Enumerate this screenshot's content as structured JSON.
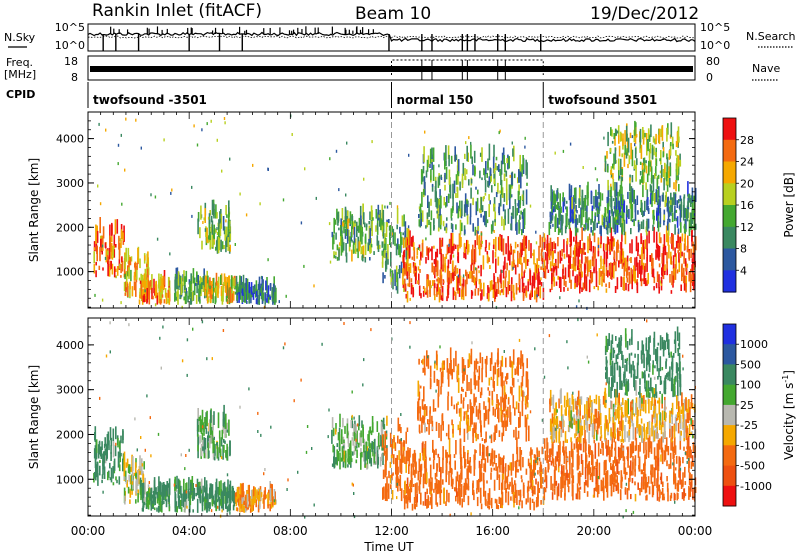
{
  "header": {
    "station": "Rankin Inlet (fitACF)",
    "beam": "Beam 10",
    "date": "19/Dec/2012"
  },
  "top_panels": {
    "nsky_label": "N.Sky",
    "nsky_ticks": [
      "10^5",
      "10^0"
    ],
    "nsearch_label": "N.Search",
    "nsearch_ticks": [
      "10^5",
      "10^0"
    ],
    "freq_label_line1": "Freq.",
    "freq_label_line2": "[MHz]",
    "freq_ticks": [
      "18",
      "8"
    ],
    "nave_label": "Nave",
    "nave_ticks": [
      "80",
      "0"
    ],
    "cpid_label": "CPID",
    "cpid_segments": [
      {
        "label": "twofsound -3501",
        "start_hour": 0,
        "end_hour": 12
      },
      {
        "label": "normal 150",
        "start_hour": 12,
        "end_hour": 18
      },
      {
        "label": "twofsound 3501",
        "start_hour": 18,
        "end_hour": 24
      }
    ]
  },
  "x_axis": {
    "label": "Time UT",
    "ticks": [
      "00:00",
      "04:00",
      "08:00",
      "12:00",
      "16:00",
      "20:00",
      "00:00"
    ],
    "range_hours": [
      0,
      24
    ]
  },
  "chart_data": [
    {
      "type": "heatmap",
      "name": "Power",
      "ylabel": "Slant Range [km]",
      "ylim": [
        180,
        4600
      ],
      "yticks": [
        1000,
        2000,
        3000,
        4000
      ],
      "xlim": [
        0,
        24
      ],
      "colorbar": {
        "label": "Power [dB]",
        "ticks": [
          "28",
          "24",
          "20",
          "16",
          "12",
          "8",
          "4"
        ],
        "colors": [
          "#ee1010",
          "#f46a10",
          "#f5a800",
          "#b8d020",
          "#44a830",
          "#3a8860",
          "#2c58a0",
          "#2030e0"
        ]
      },
      "regions": [
        {
          "t0": 0.2,
          "t1": 1.4,
          "r0": 850,
          "r1": 1900,
          "level": 26
        },
        {
          "t0": 1.4,
          "t1": 2.4,
          "r0": 400,
          "r1": 1300,
          "level": 22
        },
        {
          "t0": 2.0,
          "t1": 3.2,
          "r0": 250,
          "r1": 700,
          "level": 24
        },
        {
          "t0": 3.4,
          "t1": 4.6,
          "r0": 250,
          "r1": 800,
          "level": 12
        },
        {
          "t0": 4.6,
          "t1": 5.8,
          "r0": 250,
          "r1": 700,
          "level": 20
        },
        {
          "t0": 4.3,
          "t1": 5.6,
          "r0": 1400,
          "r1": 2300,
          "level": 14
        },
        {
          "t0": 5.8,
          "t1": 7.4,
          "r0": 250,
          "r1": 600,
          "level": 8
        },
        {
          "t0": 9.6,
          "t1": 11.8,
          "r0": 1200,
          "r1": 2200,
          "level": 14
        },
        {
          "t0": 11.6,
          "t1": 12.6,
          "r0": 500,
          "r1": 2100,
          "level": 12
        },
        {
          "t0": 12.4,
          "t1": 18.0,
          "r0": 300,
          "r1": 1600,
          "level": 27
        },
        {
          "t0": 13.0,
          "t1": 17.4,
          "r0": 1800,
          "r1": 3600,
          "level": 12
        },
        {
          "t0": 18.0,
          "t1": 24.0,
          "r0": 500,
          "r1": 1700,
          "level": 28
        },
        {
          "t0": 18.2,
          "t1": 24.0,
          "r0": 1800,
          "r1": 2700,
          "level": 10
        },
        {
          "t0": 20.4,
          "t1": 23.4,
          "r0": 2800,
          "r1": 4100,
          "level": 16
        }
      ]
    },
    {
      "type": "heatmap",
      "name": "Velocity",
      "ylabel": "Slant Range [km]",
      "ylim": [
        180,
        4600
      ],
      "yticks": [
        1000,
        2000,
        3000,
        4000
      ],
      "xlim": [
        0,
        24
      ],
      "colorbar": {
        "label": "Velocity [m s^-1]",
        "label_units": "[m s",
        "label_exp": "-1",
        "label_close": "]",
        "ticks": [
          "1000",
          "500",
          "100",
          "25",
          "-25",
          "-100",
          "-500",
          "-1000"
        ],
        "colors": [
          "#2030e0",
          "#2c58a0",
          "#3a8860",
          "#44a830",
          "#b8b8b0",
          "#f5a800",
          "#f46a10",
          "#ee5010",
          "#ee1010"
        ]
      },
      "regions": [
        {
          "t0": 0.2,
          "t1": 1.4,
          "r0": 850,
          "r1": 1900,
          "level": 150
        },
        {
          "t0": 1.4,
          "t1": 2.4,
          "r0": 400,
          "r1": 1300,
          "level": 0
        },
        {
          "t0": 2.0,
          "t1": 3.2,
          "r0": 250,
          "r1": 700,
          "level": 150
        },
        {
          "t0": 3.4,
          "t1": 4.6,
          "r0": 250,
          "r1": 800,
          "level": 120
        },
        {
          "t0": 4.6,
          "t1": 5.8,
          "r0": 250,
          "r1": 700,
          "level": 200
        },
        {
          "t0": 4.3,
          "t1": 5.6,
          "r0": 1400,
          "r1": 2300,
          "level": 80
        },
        {
          "t0": 5.8,
          "t1": 7.4,
          "r0": 250,
          "r1": 600,
          "level": -80
        },
        {
          "t0": 9.6,
          "t1": 11.8,
          "r0": 1200,
          "r1": 2200,
          "level": 60
        },
        {
          "t0": 11.6,
          "t1": 12.6,
          "r0": 500,
          "r1": 2100,
          "level": -200
        },
        {
          "t0": 12.4,
          "t1": 18.0,
          "r0": 300,
          "r1": 1600,
          "level": -300
        },
        {
          "t0": 13.0,
          "t1": 17.4,
          "r0": 1800,
          "r1": 3600,
          "level": -200
        },
        {
          "t0": 18.0,
          "t1": 24.0,
          "r0": 500,
          "r1": 1700,
          "level": -350
        },
        {
          "t0": 18.2,
          "t1": 24.0,
          "r0": 1800,
          "r1": 2700,
          "level": -60
        },
        {
          "t0": 20.4,
          "t1": 23.4,
          "r0": 2800,
          "r1": 4100,
          "level": 200
        }
      ]
    }
  ]
}
